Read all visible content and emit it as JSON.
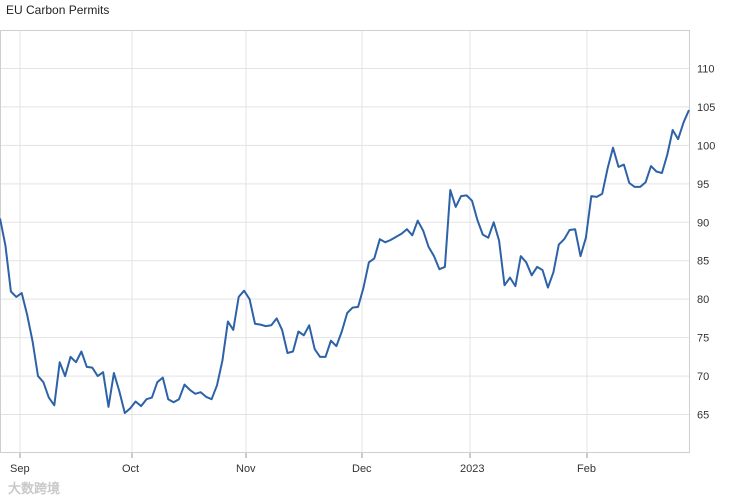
{
  "chart_data": {
    "type": "line",
    "title": "EU Carbon Permits",
    "xlabel": "",
    "ylabel": "",
    "x_ticks": [
      "Sep",
      "Oct",
      "Nov",
      "Dec",
      "2023",
      "Feb"
    ],
    "y_ticks": [
      65,
      70,
      75,
      80,
      85,
      90,
      95,
      100,
      105,
      110
    ],
    "ylim": [
      60,
      115
    ],
    "grid": true,
    "legend": "none",
    "line_color": "#2e62a8",
    "series": [
      {
        "values": [
          90.5,
          87,
          81,
          80.3,
          80.8,
          78,
          74.5,
          70,
          69.2,
          67.2,
          66.2,
          71.8,
          70,
          72.5,
          71.8,
          73.2,
          71.2,
          71.1,
          70,
          70.5,
          66,
          70.4,
          68,
          65.2,
          65.8,
          66.7,
          66.1,
          67,
          67.2,
          69.2,
          69.8,
          67,
          66.6,
          67,
          68.9,
          68.2,
          67.7,
          67.9,
          67.3,
          67,
          68.8,
          72,
          77.1,
          76,
          80.3,
          81.1,
          80,
          76.8,
          76.7,
          76.5,
          76.6,
          77.5,
          76,
          73,
          73.2,
          75.8,
          75.3,
          76.6,
          73.5,
          72.5,
          72.5,
          74.6,
          73.9,
          75.8,
          78.2,
          78.9,
          79,
          81.5,
          84.8,
          85.3,
          87.8,
          87.4,
          87.7,
          88.1,
          88.5,
          89.1,
          88.3,
          90.2,
          88.9,
          86.8,
          85.6,
          83.9,
          84.2,
          94.2,
          92,
          93.4,
          93.5,
          92.8,
          90.3,
          88.4,
          88,
          90,
          87.6,
          81.8,
          82.8,
          81.7,
          85.6,
          84.8,
          83.1,
          84.2,
          83.8,
          81.5,
          83.5,
          87.1,
          87.8,
          89,
          89.1,
          85.6,
          88,
          93.4,
          93.3,
          93.7,
          97,
          99.7,
          97.2,
          97.5,
          95.1,
          94.6,
          94.6,
          95.2,
          97.3,
          96.6,
          96.4,
          98.8,
          102,
          100.8,
          103,
          104.6
        ]
      }
    ]
  },
  "watermark_text": "大数跨境"
}
